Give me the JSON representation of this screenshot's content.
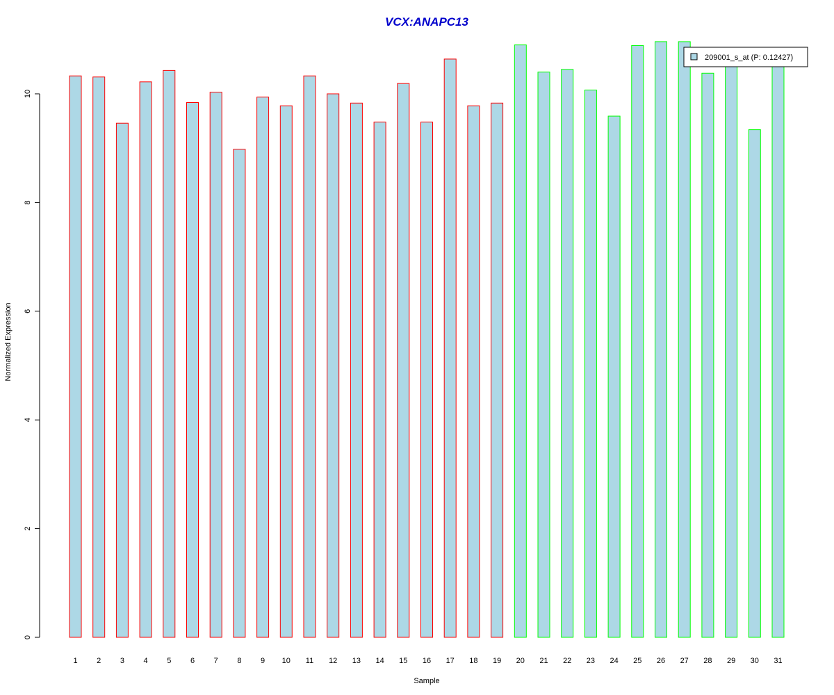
{
  "chart_data": {
    "type": "bar",
    "title": "VCX:ANAPC13",
    "xlabel": "Sample",
    "ylabel": "Normalized Expression",
    "ylim": [
      0,
      11
    ],
    "yticks": [
      0,
      2,
      4,
      6,
      8,
      10
    ],
    "grid": false,
    "legend_position": "top-right",
    "categories": [
      "1",
      "2",
      "3",
      "4",
      "5",
      "6",
      "7",
      "8",
      "9",
      "10",
      "11",
      "12",
      "13",
      "14",
      "15",
      "16",
      "17",
      "18",
      "19",
      "20",
      "21",
      "22",
      "23",
      "24",
      "25",
      "26",
      "27",
      "28",
      "29",
      "30",
      "31"
    ],
    "series": [
      {
        "name": "209001_s_at (P: 0.12427)",
        "values": [
          10.33,
          10.31,
          9.46,
          10.22,
          10.43,
          9.84,
          10.03,
          8.98,
          9.94,
          9.78,
          10.33,
          10.0,
          9.83,
          9.48,
          10.19,
          9.48,
          10.64,
          9.78,
          9.83,
          10.9,
          10.4,
          10.45,
          10.07,
          9.59,
          10.89,
          10.96,
          10.96,
          10.38,
          10.6,
          9.34,
          10.6
        ],
        "groups": [
          "1",
          "1",
          "1",
          "1",
          "1",
          "1",
          "1",
          "1",
          "1",
          "1",
          "1",
          "1",
          "1",
          "1",
          "1",
          "1",
          "1",
          "1",
          "1",
          "2",
          "2",
          "2",
          "2",
          "2",
          "2",
          "2",
          "2",
          "2",
          "2",
          "2",
          "2"
        ]
      }
    ],
    "colors": {
      "bar_fill": "#ADD8E6",
      "group1_border": "#FF0000",
      "group2_border": "#00FF00",
      "title": "#0000CC",
      "axis": "#000000"
    }
  }
}
